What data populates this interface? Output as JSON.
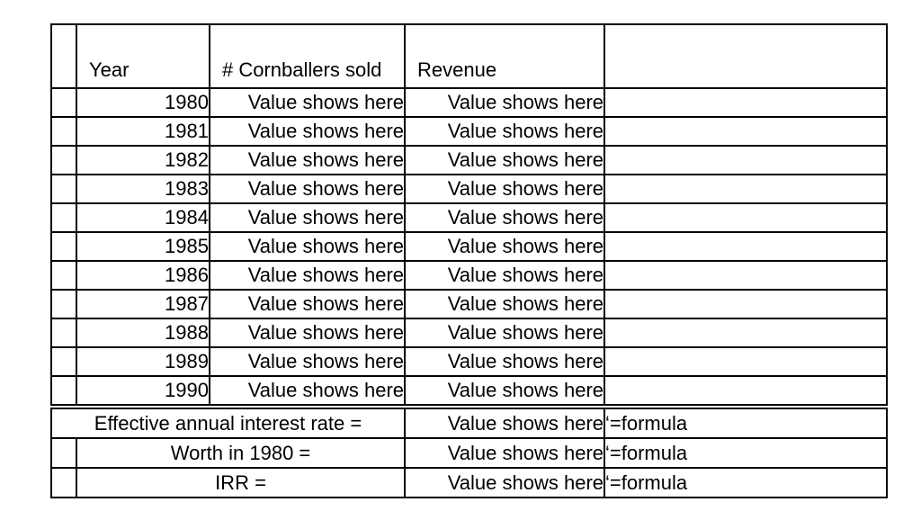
{
  "table": {
    "headers": {
      "year": "Year",
      "sold": "# Cornballers sold",
      "revenue": "Revenue"
    },
    "rows": [
      {
        "year": "1980",
        "sold": "Value shows here",
        "revenue": "Value shows here"
      },
      {
        "year": "1981",
        "sold": "Value shows here",
        "revenue": "Value shows here"
      },
      {
        "year": "1982",
        "sold": "Value shows here",
        "revenue": "Value shows here"
      },
      {
        "year": "1983",
        "sold": "Value shows here",
        "revenue": "Value shows here"
      },
      {
        "year": "1984",
        "sold": "Value shows here",
        "revenue": "Value shows here"
      },
      {
        "year": "1985",
        "sold": "Value shows here",
        "revenue": "Value shows here"
      },
      {
        "year": "1986",
        "sold": "Value shows here",
        "revenue": "Value shows here"
      },
      {
        "year": "1987",
        "sold": "Value shows here",
        "revenue": "Value shows here"
      },
      {
        "year": "1988",
        "sold": "Value shows here",
        "revenue": "Value shows here"
      },
      {
        "year": "1989",
        "sold": "Value shows here",
        "revenue": "Value shows here"
      },
      {
        "year": "1990",
        "sold": "Value shows here",
        "revenue": "Value shows here"
      }
    ],
    "summary": [
      {
        "label": "Effective annual interest rate =",
        "value": "Value shows here",
        "formula": "‘=formula"
      },
      {
        "label": "Worth in 1980 =",
        "value": "Value shows here",
        "formula": "‘=formula"
      },
      {
        "label": "IRR =",
        "value": "Value shows here",
        "formula": "‘=formula"
      }
    ]
  },
  "colors": {
    "border": "#000000",
    "text": "#000000",
    "background": "#ffffff"
  }
}
